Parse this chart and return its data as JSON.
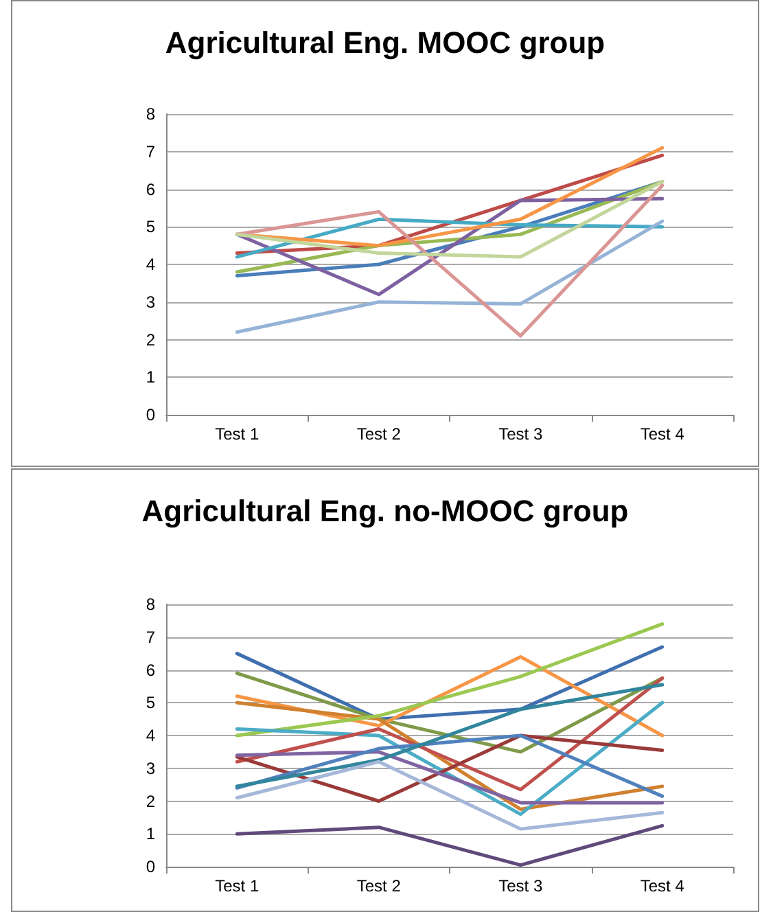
{
  "chart_data": [
    {
      "type": "line",
      "title": "Agricultural Eng. MOOC group",
      "categories": [
        "Test 1",
        "Test 2",
        "Test 3",
        "Test 4"
      ],
      "ylim": [
        0,
        8
      ],
      "yticks": [
        0,
        1,
        2,
        3,
        4,
        5,
        6,
        7,
        8
      ],
      "grid": "y",
      "marker": "none",
      "series": [
        {
          "color": "#4a7ebb",
          "values": [
            3.7,
            4.0,
            5.0,
            6.2
          ]
        },
        {
          "color": "#be4b48",
          "values": [
            4.3,
            4.5,
            5.7,
            6.9
          ]
        },
        {
          "color": "#98b954",
          "values": [
            3.8,
            4.5,
            4.8,
            6.2
          ]
        },
        {
          "color": "#7d60a0",
          "values": [
            4.8,
            3.2,
            5.7,
            5.75
          ]
        },
        {
          "color": "#46aac5",
          "values": [
            4.2,
            5.2,
            5.05,
            5.0
          ]
        },
        {
          "color": "#f79646",
          "values": [
            4.8,
            4.5,
            5.2,
            7.1
          ]
        },
        {
          "color": "#95b3d7",
          "values": [
            2.2,
            3.0,
            2.95,
            5.15
          ]
        },
        {
          "color": "#d99694",
          "values": [
            4.8,
            5.4,
            2.1,
            6.1
          ]
        },
        {
          "color": "#c3d69b",
          "values": [
            4.8,
            4.3,
            4.2,
            6.2
          ]
        }
      ]
    },
    {
      "type": "line",
      "title": "Agricultural Eng. no-MOOC group",
      "categories": [
        "Test 1",
        "Test 2",
        "Test 3",
        "Test 4"
      ],
      "ylim": [
        0,
        8
      ],
      "yticks": [
        0,
        1,
        2,
        3,
        4,
        5,
        6,
        7,
        8
      ],
      "grid": "y",
      "marker": "none",
      "series": [
        {
          "color": "#3f6fae",
          "values": [
            6.5,
            4.5,
            4.8,
            6.7
          ]
        },
        {
          "color": "#7f9a48",
          "values": [
            5.9,
            4.5,
            3.5,
            5.75
          ]
        },
        {
          "color": "#f79646",
          "values": [
            5.2,
            4.3,
            6.4,
            4.0
          ]
        },
        {
          "color": "#d0802f",
          "values": [
            5.0,
            4.5,
            1.75,
            2.45
          ]
        },
        {
          "color": "#9bc850",
          "values": [
            4.0,
            4.6,
            5.8,
            7.4
          ]
        },
        {
          "color": "#4bacc6",
          "values": [
            4.2,
            4.0,
            1.6,
            5.0
          ]
        },
        {
          "color": "#c0504d",
          "values": [
            3.2,
            4.2,
            2.35,
            5.75
          ]
        },
        {
          "color": "#9a3a38",
          "values": [
            3.35,
            2.0,
            4.0,
            3.55
          ]
        },
        {
          "color": "#8064a2",
          "values": [
            3.4,
            3.5,
            1.95,
            1.95
          ]
        },
        {
          "color": "#4f81bd",
          "values": [
            2.4,
            3.6,
            4.0,
            2.15
          ]
        },
        {
          "color": "#31859c",
          "values": [
            2.45,
            3.25,
            4.8,
            5.55
          ]
        },
        {
          "color": "#a5b8da",
          "values": [
            2.1,
            3.2,
            1.15,
            1.65
          ]
        },
        {
          "color": "#604a7b",
          "values": [
            1.0,
            1.2,
            0.05,
            1.25
          ]
        }
      ]
    }
  ]
}
